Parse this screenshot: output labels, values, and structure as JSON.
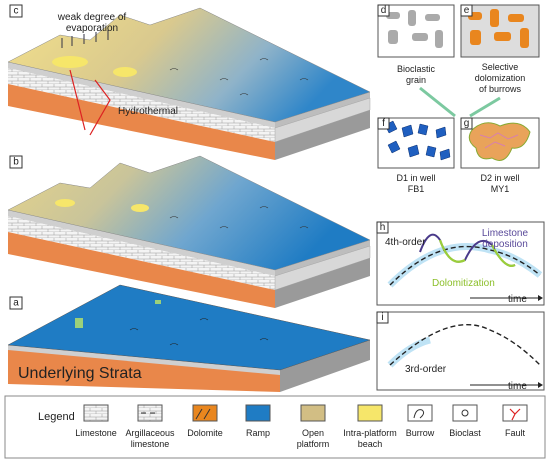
{
  "panels": [
    "c",
    "b",
    "a",
    "d",
    "e",
    "f",
    "g",
    "h",
    "i"
  ],
  "annotations": {
    "evaporation": [
      "weak degree of",
      "evaporation"
    ],
    "hydrothermal": "Hydrothermal",
    "strata": "Underlying Strata"
  },
  "captions": {
    "d": [
      "Bioclastic",
      "grain"
    ],
    "e": [
      "Selective",
      "dolomization",
      "of burrows"
    ],
    "f": [
      "D1 in well",
      "FB1"
    ],
    "g": [
      "D2 in well",
      "MY1"
    ]
  },
  "curves": {
    "h": {
      "order": "4th-order",
      "limestone": [
        "Limestone",
        "deposition"
      ],
      "dolomitization": "Dolomitization",
      "axis": "time"
    },
    "i": {
      "order": "3rd-order",
      "axis": "time"
    }
  },
  "legend": {
    "title": "Legend",
    "items": [
      [
        "Limestone"
      ],
      [
        "Argillaceous",
        "limestone"
      ],
      [
        "Dolomite"
      ],
      [
        "Ramp"
      ],
      [
        "Open",
        "platform"
      ],
      [
        "Intra-platform",
        "beach"
      ],
      [
        "Burrow"
      ],
      [
        "Bioclast"
      ],
      [
        "Fault"
      ]
    ]
  }
}
